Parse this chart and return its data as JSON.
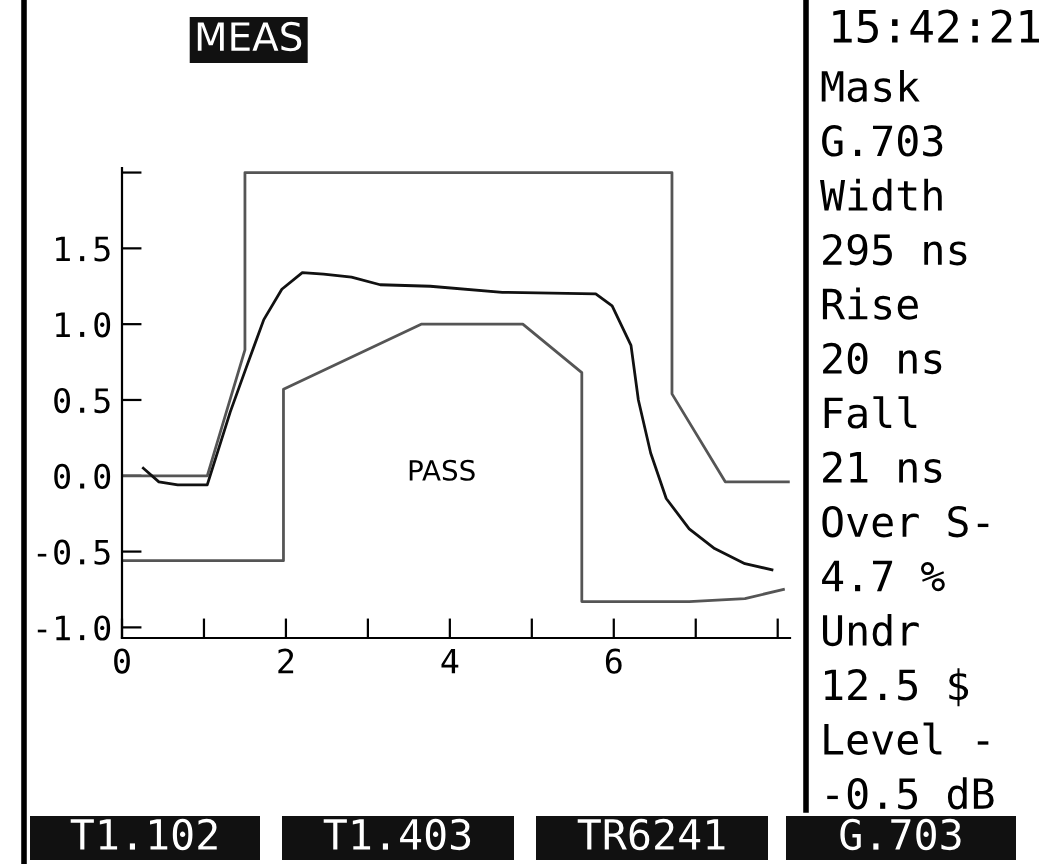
{
  "chart_data": {
    "type": "line",
    "xlim": [
      0,
      8.15
    ],
    "ylim": [
      -1.07,
      2.03
    ],
    "xticks": [
      0,
      {
        "value": 1,
        "label": null
      },
      2,
      {
        "value": 3,
        "label": null
      },
      4,
      {
        "value": 5,
        "label": null
      },
      6,
      {
        "value": 7,
        "label": null
      },
      {
        "value": 8,
        "label": null
      }
    ],
    "yticks": [
      {
        "value": -1.0,
        "label": "-1.0"
      },
      {
        "value": -0.5,
        "label": "-0.5"
      },
      {
        "value": 0.0,
        "label": "0.0"
      },
      {
        "value": 0.5,
        "label": "0.5"
      },
      {
        "value": 1.0,
        "label": "1.0"
      },
      {
        "value": 1.5,
        "label": "1.5"
      },
      {
        "value": 2.0,
        "label": null
      }
    ],
    "marker": "none",
    "line_style": "solid",
    "series": [
      {
        "color": "#555555",
        "x": [
          0,
          1.04,
          1.5,
          1.5,
          6.71,
          6.71,
          7.36,
          8.13
        ],
        "values": [
          0,
          0,
          0.83,
          2.0,
          2.0,
          0.54,
          -0.04,
          -0.04
        ]
      },
      {
        "color": "#555555",
        "x": [
          0,
          1.97,
          1.97,
          3.65,
          4.89,
          5.61,
          5.61,
          6.92,
          7.6,
          8.07
        ],
        "values": [
          -0.56,
          -0.56,
          0.57,
          1.0,
          1.0,
          0.68,
          -0.83,
          -0.83,
          -0.81,
          -0.75
        ]
      },
      {
        "color": "#111111",
        "x": [
          0.26,
          0.45,
          0.68,
          1.04,
          1.32,
          1.52,
          1.73,
          1.95,
          2.2,
          2.46,
          2.8,
          3.15,
          3.76,
          4.64,
          5.78,
          5.98,
          6.21,
          6.3,
          6.45,
          6.64,
          6.92,
          7.23,
          7.6,
          7.93
        ],
        "values": [
          0.05,
          -0.04,
          -0.06,
          -0.06,
          0.42,
          0.72,
          1.03,
          1.23,
          1.34,
          1.33,
          1.31,
          1.26,
          1.25,
          1.21,
          1.2,
          1.12,
          0.86,
          0.5,
          0.15,
          -0.15,
          -0.35,
          -0.48,
          -0.58,
          -0.62
        ]
      }
    ],
    "annotations": [
      "MEAS",
      "15:42:21",
      "PASS",
      "Mask",
      "G.703",
      "Width",
      "295 ns",
      "Rise",
      "20 ns",
      "Fall",
      "21 ns",
      "Over S-",
      "4.7 %",
      "Undr",
      "12.5 $",
      "Level -",
      "-0.5 dB",
      "T1.102",
      "T1.403",
      "TR6241",
      "G.703"
    ]
  }
}
